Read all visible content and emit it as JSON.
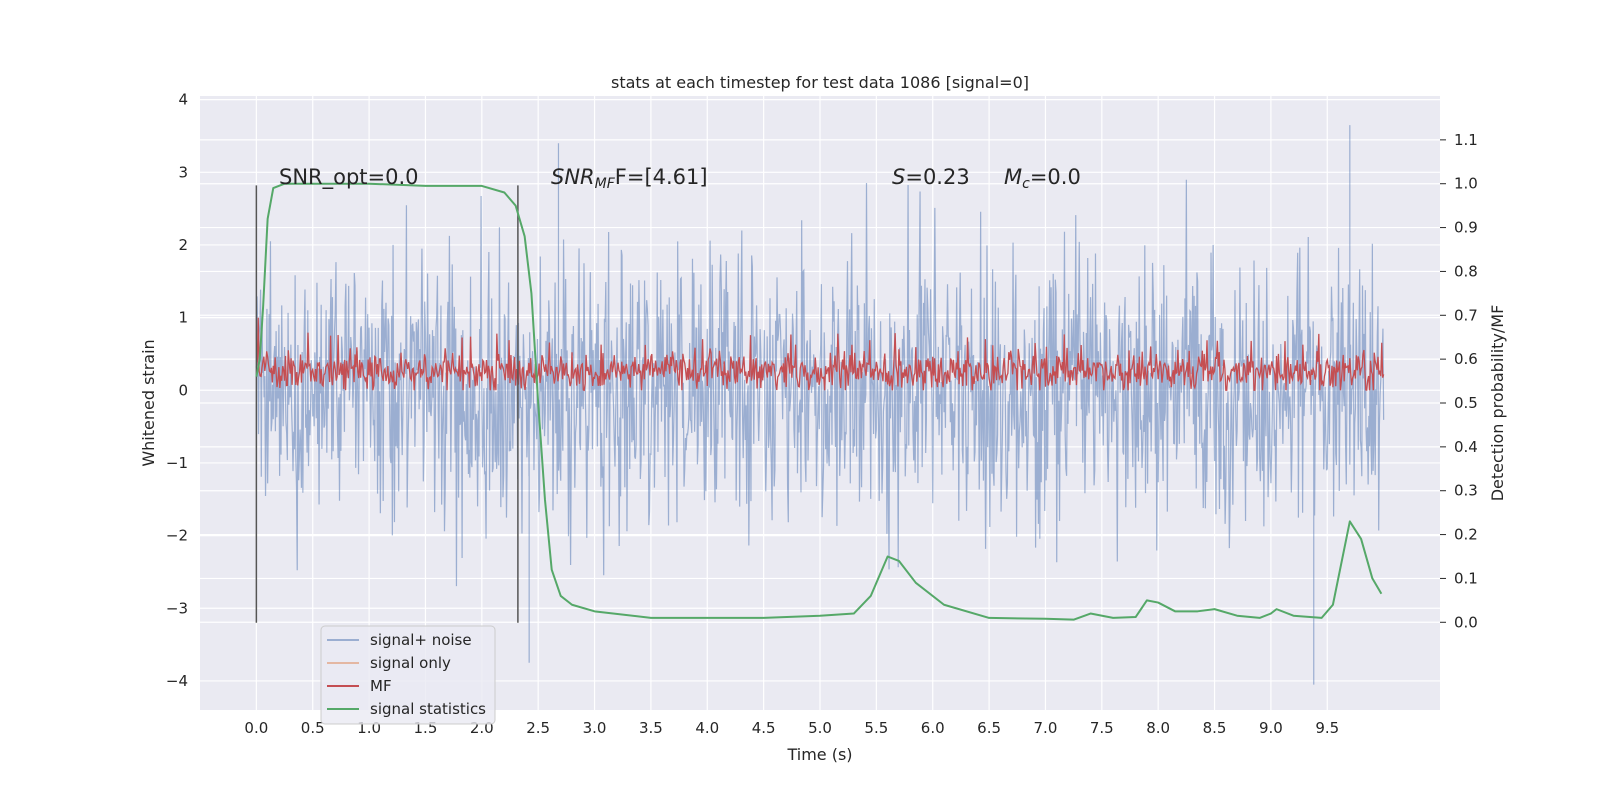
{
  "chart_data": {
    "type": "line",
    "title": "stats at each timestep for test data 1086 [signal=0]",
    "xlabel": "Time (s)",
    "ylabel": "Whitened strain",
    "ylabel_right": "Detection probability/MF",
    "xlim": [
      -0.5,
      10.5
    ],
    "ylim": [
      -4.4,
      4.05
    ],
    "ylim_right": [
      -0.2,
      1.2
    ],
    "xticks": [
      "0.0",
      "0.5",
      "1.0",
      "1.5",
      "2.0",
      "2.5",
      "3.0",
      "3.5",
      "4.0",
      "4.5",
      "5.0",
      "5.5",
      "6.0",
      "6.5",
      "7.0",
      "7.5",
      "8.0",
      "8.5",
      "9.0",
      "9.5"
    ],
    "yticks": [
      "−4",
      "−3",
      "−2",
      "−1",
      "0",
      "1",
      "2",
      "3",
      "4"
    ],
    "yticks_right": [
      "0.0",
      "0.1",
      "0.2",
      "0.3",
      "0.4",
      "0.5",
      "0.6",
      "0.7",
      "0.8",
      "0.9",
      "1.0",
      "1.1"
    ],
    "grid": true,
    "legend_position": "lower-left",
    "annotations": {
      "snr_opt": "SNR_opt=0.0",
      "snr_mf_main": "SNR",
      "snr_mf_sub": "MF",
      "snr_mf_rest": "F=[4.61]",
      "s_main": "S",
      "s_rest": "=0.23",
      "mc_main": "M",
      "mc_sub": "c",
      "mc_rest": "=0.0"
    },
    "vlines": [
      0.0,
      2.32
    ],
    "series": [
      {
        "name": "signal+ noise",
        "color": "#4c72b0",
        "axis": "left",
        "noise_range": [
          -3.2,
          3.2
        ],
        "extreme_values": [
          [
            9.7,
            3.65
          ],
          [
            9.38,
            -4.05
          ],
          [
            2.42,
            -3.75
          ],
          [
            2.68,
            3.4
          ]
        ]
      },
      {
        "name": "signal only",
        "color": "#dd8452",
        "axis": "left",
        "values": []
      },
      {
        "name": "MF",
        "color": "#c44e52",
        "axis": "left",
        "range": [
          0.0,
          1.0
        ],
        "typical": [
          0.1,
          0.45
        ]
      },
      {
        "name": "signal statistics",
        "color": "#55a868",
        "axis": "right",
        "points": [
          [
            0.0,
            0.56
          ],
          [
            0.03,
            0.6
          ],
          [
            0.06,
            0.72
          ],
          [
            0.1,
            0.92
          ],
          [
            0.15,
            0.99
          ],
          [
            0.25,
            1.0
          ],
          [
            0.5,
            1.0
          ],
          [
            1.0,
            1.0
          ],
          [
            1.5,
            0.995
          ],
          [
            2.0,
            0.995
          ],
          [
            2.2,
            0.98
          ],
          [
            2.3,
            0.95
          ],
          [
            2.38,
            0.88
          ],
          [
            2.44,
            0.75
          ],
          [
            2.5,
            0.5
          ],
          [
            2.56,
            0.28
          ],
          [
            2.62,
            0.12
          ],
          [
            2.7,
            0.06
          ],
          [
            2.8,
            0.04
          ],
          [
            3.0,
            0.025
          ],
          [
            3.5,
            0.01
          ],
          [
            4.0,
            0.01
          ],
          [
            4.5,
            0.01
          ],
          [
            5.0,
            0.015
          ],
          [
            5.3,
            0.02
          ],
          [
            5.45,
            0.06
          ],
          [
            5.6,
            0.15
          ],
          [
            5.7,
            0.14
          ],
          [
            5.85,
            0.09
          ],
          [
            6.1,
            0.04
          ],
          [
            6.5,
            0.01
          ],
          [
            7.0,
            0.008
          ],
          [
            7.25,
            0.006
          ],
          [
            7.4,
            0.02
          ],
          [
            7.6,
            0.01
          ],
          [
            7.8,
            0.012
          ],
          [
            7.9,
            0.05
          ],
          [
            8.0,
            0.045
          ],
          [
            8.15,
            0.025
          ],
          [
            8.35,
            0.025
          ],
          [
            8.5,
            0.03
          ],
          [
            8.7,
            0.015
          ],
          [
            8.9,
            0.01
          ],
          [
            9.0,
            0.02
          ],
          [
            9.05,
            0.03
          ],
          [
            9.2,
            0.015
          ],
          [
            9.45,
            0.01
          ],
          [
            9.55,
            0.04
          ],
          [
            9.7,
            0.23
          ],
          [
            9.8,
            0.19
          ],
          [
            9.9,
            0.1
          ],
          [
            9.98,
            0.065
          ]
        ]
      }
    ]
  }
}
